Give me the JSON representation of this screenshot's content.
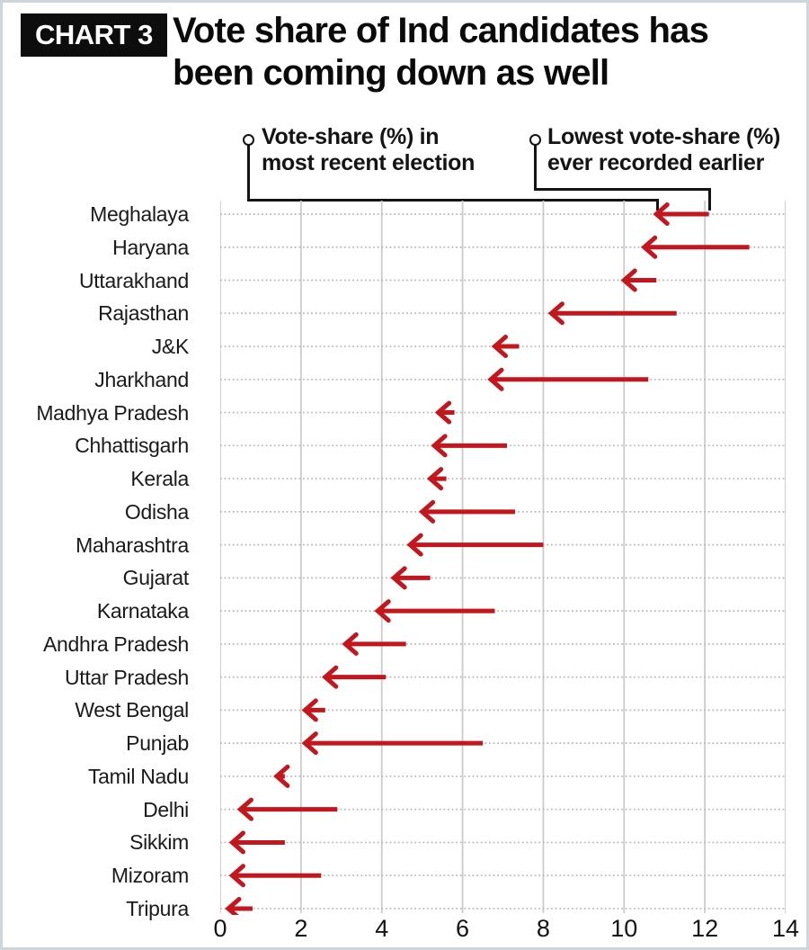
{
  "header": {
    "badge": "CHART 3",
    "title_line1": "Vote share of Ind candidates has",
    "title_line2": "been coming down as well"
  },
  "annotations": {
    "recent": {
      "line1": "Vote-share (%) in",
      "line2": "most recent election"
    },
    "earlier": {
      "line1": "Lowest vote-share (%)",
      "line2": "ever recorded earlier"
    }
  },
  "chart_data": {
    "type": "scatter",
    "variant": "arrow-dumbbell",
    "orientation": "horizontal",
    "title": "Vote share of Ind candidates has been coming down as well",
    "categories": [
      "Meghalaya",
      "Haryana",
      "Uttarakhand",
      "Rajasthan",
      "J&K",
      "Jharkhand",
      "Madhya Pradesh",
      "Chhattisgarh",
      "Kerala",
      "Odisha",
      "Maharashtra",
      "Gujarat",
      "Karnataka",
      "Andhra Pradesh",
      "Uttar Pradesh",
      "West Bengal",
      "Punjab",
      "Tamil Nadu",
      "Delhi",
      "Sikkim",
      "Mizoram",
      "Tripura"
    ],
    "series": [
      {
        "name": "Vote-share (%) in most recent election",
        "values": [
          10.8,
          10.5,
          10.0,
          8.2,
          6.8,
          6.7,
          5.4,
          5.3,
          5.2,
          5.0,
          4.7,
          4.3,
          3.9,
          3.1,
          2.6,
          2.1,
          2.1,
          1.4,
          0.5,
          0.3,
          0.3,
          0.2
        ]
      },
      {
        "name": "Lowest vote-share (%) ever recorded earlier",
        "values": [
          12.1,
          13.1,
          10.8,
          11.3,
          7.4,
          10.6,
          5.8,
          7.1,
          5.6,
          7.3,
          8.0,
          5.2,
          6.8,
          4.6,
          4.1,
          2.6,
          6.5,
          1.6,
          2.9,
          1.6,
          2.5,
          0.8
        ]
      }
    ],
    "arrow_note": "Each arrow points from the lowest earlier vote-share (tail) leftward to the most recent vote-share (head)",
    "xlim": [
      0,
      14
    ],
    "xticks": [
      0,
      2,
      4,
      6,
      8,
      10,
      12,
      14
    ],
    "grid": "vertical solid, horizontal dotted row guides",
    "legend_position": "top, as callout annotations to first arrow"
  },
  "colors": {
    "arrow": "#c3161d",
    "callout_line": "#141414",
    "grid_vertical": "#cbcbcb",
    "grid_dotted": "#b8b8b8",
    "badge_bg": "#0d0d0d",
    "badge_text": "#ffffff",
    "text": "#111111",
    "frame_border": "#cdd6db"
  }
}
